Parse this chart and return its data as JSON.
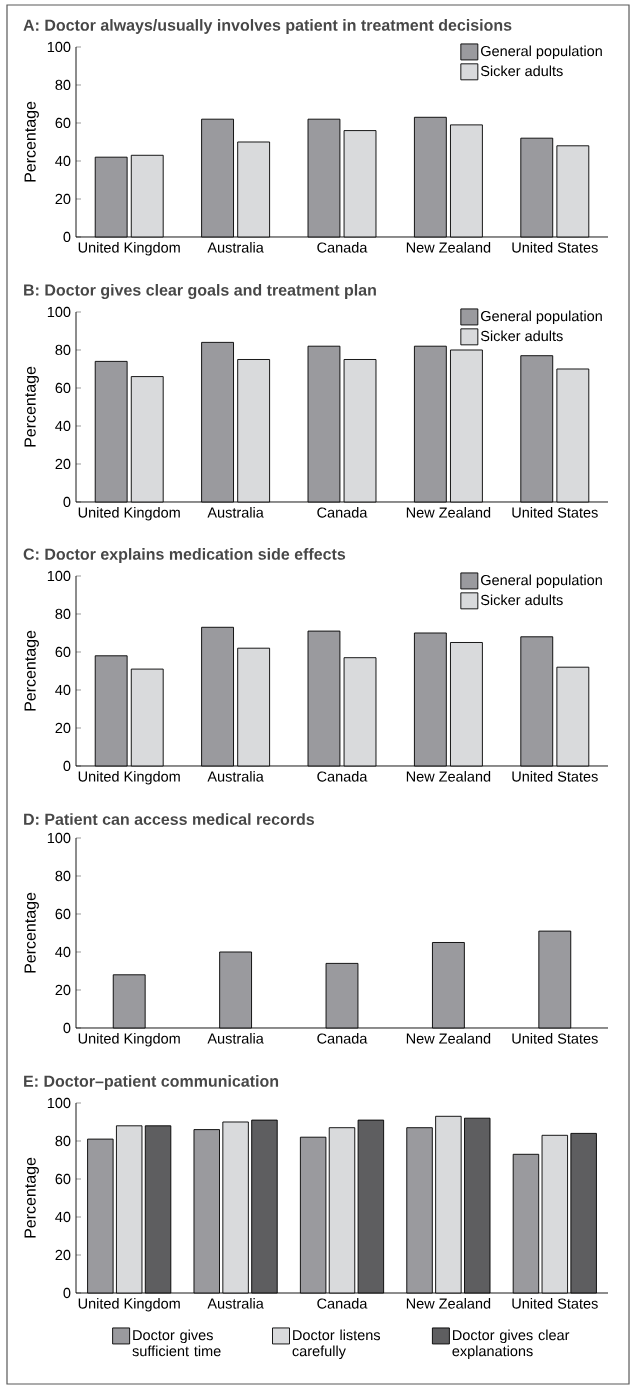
{
  "chart_data": [
    {
      "type": "bar",
      "title": "A: Doctor always/usually involves patient in treatment decisions",
      "ylabel": "Percentage",
      "categories": [
        "United Kingdom",
        "Australia",
        "Canada",
        "New Zealand",
        "United States"
      ],
      "ylim": [
        0,
        100
      ],
      "yticks": [
        0,
        20,
        40,
        60,
        80,
        100
      ],
      "legend": "top right",
      "series": [
        {
          "name": "General population",
          "color": "#9a9a9e",
          "values": [
            42,
            62,
            62,
            63,
            52
          ]
        },
        {
          "name": "Sicker adults",
          "color": "#d9dadc",
          "values": [
            43,
            50,
            56,
            59,
            48
          ]
        }
      ]
    },
    {
      "type": "bar",
      "title": "B: Doctor gives clear goals and treatment plan",
      "ylabel": "Percentage",
      "categories": [
        "United Kingdom",
        "Australia",
        "Canada",
        "New Zealand",
        "United States"
      ],
      "ylim": [
        0,
        100
      ],
      "yticks": [
        0,
        20,
        40,
        60,
        80,
        100
      ],
      "legend": "top right",
      "series": [
        {
          "name": "General population",
          "color": "#9a9a9e",
          "values": [
            74,
            84,
            82,
            82,
            77
          ]
        },
        {
          "name": "Sicker adults",
          "color": "#d9dadc",
          "values": [
            66,
            75,
            75,
            80,
            70
          ]
        }
      ]
    },
    {
      "type": "bar",
      "title": "C: Doctor explains medication side effects",
      "ylabel": "Percentage",
      "categories": [
        "United Kingdom",
        "Australia",
        "Canada",
        "New Zealand",
        "United States"
      ],
      "ylim": [
        0,
        100
      ],
      "yticks": [
        0,
        20,
        40,
        60,
        80,
        100
      ],
      "legend": "top right",
      "series": [
        {
          "name": "General population",
          "color": "#9a9a9e",
          "values": [
            58,
            73,
            71,
            70,
            68
          ]
        },
        {
          "name": "Sicker adults",
          "color": "#d9dadc",
          "values": [
            51,
            62,
            57,
            65,
            52
          ]
        }
      ]
    },
    {
      "type": "bar",
      "title": "D: Patient can access medical records",
      "ylabel": "Percentage",
      "categories": [
        "United Kingdom",
        "Australia",
        "Canada",
        "New Zealand",
        "United States"
      ],
      "ylim": [
        0,
        100
      ],
      "yticks": [
        0,
        20,
        40,
        60,
        80,
        100
      ],
      "series": [
        {
          "color": "#9a9a9e",
          "values": [
            28,
            40,
            34,
            45,
            51
          ]
        }
      ]
    },
    {
      "type": "bar",
      "title": "E: Doctor–patient communication",
      "ylabel": "Percentage",
      "categories": [
        "United Kingdom",
        "Australia",
        "Canada",
        "New Zealand",
        "United States"
      ],
      "ylim": [
        0,
        100
      ],
      "yticks": [
        0,
        20,
        40,
        60,
        80,
        100
      ],
      "legend": "bottom",
      "series": [
        {
          "name": "Doctor gives sufficient time",
          "color": "#9a9a9e",
          "values": [
            81,
            86,
            82,
            87,
            73
          ]
        },
        {
          "name": "Doctor listens carefully",
          "color": "#d9dadc",
          "values": [
            88,
            90,
            87,
            93,
            83
          ]
        },
        {
          "name": "Doctor gives clear explanations",
          "color": "#5e5e60",
          "values": [
            88,
            91,
            91,
            92,
            84
          ]
        }
      ]
    }
  ]
}
